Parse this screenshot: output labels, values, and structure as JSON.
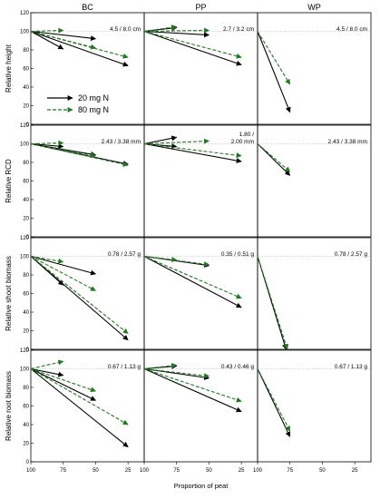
{
  "chart_data": {
    "type": "vector-plot",
    "columns": [
      "BC",
      "PP",
      "WP"
    ],
    "rows": [
      "Relative height",
      "Relative RCD",
      "Relative shoot biomass",
      "Relative root biomass"
    ],
    "xlabel": "Proportion of peat",
    "x_ticks": [
      100,
      75,
      50,
      25
    ],
    "xlim": [
      100,
      12.5
    ],
    "ylim": [
      0,
      120
    ],
    "y_ticks": [
      0,
      20,
      40,
      60,
      80,
      100,
      120
    ],
    "reference_line": 100,
    "legend": [
      {
        "name": "20 mg N",
        "color": "#000000",
        "dash": "solid"
      },
      {
        "name": "80 mg N",
        "color": "#1e7a1e",
        "dash": "dashed"
      }
    ],
    "panels": [
      {
        "row": 0,
        "col": 0,
        "ref_label": "4.5 / 8.0 cm",
        "series": [
          {
            "dose": "20 mg N",
            "ends": [
              [
                50,
                92
              ],
              [
                75,
                81
              ],
              [
                25,
                63
              ]
            ]
          },
          {
            "dose": "80 mg N",
            "ends": [
              [
                75,
                101
              ],
              [
                50,
                82
              ],
              [
                25,
                72
              ]
            ]
          }
        ]
      },
      {
        "row": 0,
        "col": 1,
        "ref_label": "2.7 / 3.2 cm",
        "series": [
          {
            "dose": "20 mg N",
            "ends": [
              [
                75,
                104
              ],
              [
                50,
                96
              ],
              [
                25,
                64
              ]
            ]
          },
          {
            "dose": "80 mg N",
            "ends": [
              [
                75,
                105
              ],
              [
                50,
                101
              ],
              [
                25,
                72
              ]
            ]
          }
        ]
      },
      {
        "row": 0,
        "col": 2,
        "ref_label": "4.5 / 8.0 cm",
        "series": [
          {
            "dose": "20 mg N",
            "ends": [
              [
                75,
                13
              ]
            ]
          },
          {
            "dose": "80 mg N",
            "ends": [
              [
                75,
                43
              ]
            ]
          }
        ]
      },
      {
        "row": 1,
        "col": 0,
        "ref_label": "2.43 / 3.38 mm",
        "series": [
          {
            "dose": "20 mg N",
            "ends": [
              [
                75,
                97
              ],
              [
                50,
                88
              ],
              [
                25,
                78
              ]
            ]
          },
          {
            "dose": "80 mg N",
            "ends": [
              [
                75,
                101
              ],
              [
                50,
                87
              ],
              [
                25,
                77
              ]
            ]
          }
        ]
      },
      {
        "row": 1,
        "col": 1,
        "ref_label": "1.80 /\n2.00 mm",
        "series": [
          {
            "dose": "20 mg N",
            "ends": [
              [
                75,
                107
              ],
              [
                75,
                97
              ],
              [
                25,
                81
              ]
            ]
          },
          {
            "dose": "80 mg N",
            "ends": [
              [
                50,
                103
              ],
              [
                25,
                87
              ]
            ]
          }
        ]
      },
      {
        "row": 1,
        "col": 2,
        "ref_label": "2.43 / 3.38 mm",
        "series": [
          {
            "dose": "20 mg N",
            "ends": [
              [
                75,
                66
              ]
            ]
          },
          {
            "dose": "80 mg N",
            "ends": [
              [
                75,
                70
              ]
            ]
          }
        ]
      },
      {
        "row": 2,
        "col": 0,
        "ref_label": "0.78 / 2.57 g",
        "series": [
          {
            "dose": "20 mg N",
            "ends": [
              [
                50,
                81
              ],
              [
                75,
                69
              ],
              [
                25,
                10
              ]
            ]
          },
          {
            "dose": "80 mg N",
            "ends": [
              [
                75,
                94
              ],
              [
                50,
                63
              ],
              [
                25,
                17
              ]
            ]
          }
        ]
      },
      {
        "row": 2,
        "col": 1,
        "ref_label": "0.35 / 0.51 g",
        "series": [
          {
            "dose": "20 mg N",
            "ends": [
              [
                50,
                90
              ],
              [
                25,
                45
              ]
            ]
          },
          {
            "dose": "80 mg N",
            "ends": [
              [
                75,
                96
              ],
              [
                50,
                91
              ],
              [
                25,
                55
              ]
            ]
          }
        ]
      },
      {
        "row": 2,
        "col": 2,
        "ref_label": "0.78 / 2.57 g",
        "series": [
          {
            "dose": "20 mg N",
            "ends": [
              [
                78,
                0
              ]
            ]
          },
          {
            "dose": "80 mg N",
            "ends": [
              [
                77,
                0
              ]
            ]
          }
        ]
      },
      {
        "row": 3,
        "col": 0,
        "ref_label": "0.67 / 1.13 g",
        "series": [
          {
            "dose": "20 mg N",
            "ends": [
              [
                75,
                93
              ],
              [
                50,
                66
              ],
              [
                25,
                16
              ]
            ]
          },
          {
            "dose": "80 mg N",
            "ends": [
              [
                75,
                108
              ],
              [
                50,
                76
              ],
              [
                25,
                40
              ]
            ]
          }
        ]
      },
      {
        "row": 3,
        "col": 1,
        "ref_label": "0.43 / 0.46 g",
        "series": [
          {
            "dose": "20 mg N",
            "ends": [
              [
                75,
                103
              ],
              [
                50,
                90
              ],
              [
                25,
                54
              ]
            ]
          },
          {
            "dose": "80 mg N",
            "ends": [
              [
                75,
                104
              ],
              [
                50,
                92
              ],
              [
                25,
                65
              ]
            ]
          }
        ]
      },
      {
        "row": 3,
        "col": 2,
        "ref_label": "0.67 / 1.13 g",
        "series": [
          {
            "dose": "20 mg N",
            "ends": [
              [
                75,
                27
              ]
            ]
          },
          {
            "dose": "80 mg N",
            "ends": [
              [
                75,
                33
              ]
            ]
          }
        ]
      }
    ]
  }
}
